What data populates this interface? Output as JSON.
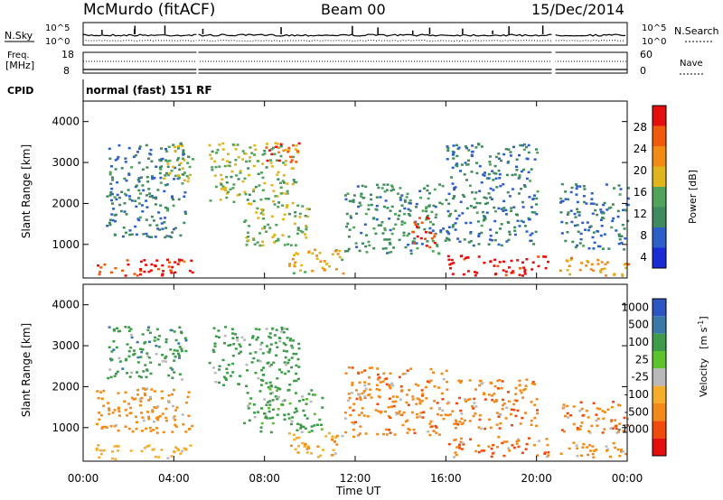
{
  "header": {
    "title": "McMurdo (fitACF)",
    "beam": "Beam 00",
    "date": "15/Dec/2014"
  },
  "status_panels": {
    "nsky_label": "N.Sky",
    "nsearch_label": "N.Search",
    "noise_ticks": [
      "10^5",
      "10^0"
    ],
    "freq_label_1": "Freq.",
    "freq_label_2": "[MHz]",
    "freq_ticks": [
      "18",
      "8"
    ],
    "nave_label": "Nave",
    "nave_ticks": [
      "60",
      "0"
    ],
    "cpid_label": "CPID",
    "cpid_value": "normal (fast) 151 RF"
  },
  "colors": {
    "power_scale": [
      "#1a2bd6",
      "#2e5fc9",
      "#3f8a5e",
      "#4fa35a",
      "#e0b41c",
      "#f28a14",
      "#ef5a0c",
      "#e60d0d"
    ],
    "velocity_scale": [
      "#e60d0d",
      "#f04a0c",
      "#f28a1a",
      "#f6ad2a",
      "#b9b9b9",
      "#5cc32d",
      "#3d9b4a",
      "#3a78a8",
      "#2d55c2"
    ],
    "ground_scatter": "#b9b9b9"
  },
  "chart_data": [
    {
      "type": "heatmap",
      "name": "power",
      "ylabel": "Slant Range [km]",
      "yticks": [
        "1000",
        "2000",
        "3000",
        "4000"
      ],
      "ylim": [
        180,
        4500
      ],
      "xlim": [
        "00:00",
        "00:00"
      ],
      "colorbar_label": "Power [dB]",
      "colorbar_ticks": [
        "28",
        "24",
        "20",
        "16",
        "12",
        "8",
        "4"
      ],
      "colorbar_range": [
        0,
        30
      ],
      "data_gaps_ut": [
        [
          "05:00",
          "05:05"
        ],
        [
          "20:40",
          "20:50"
        ]
      ],
      "scatter_patches": [
        {
          "t0": 0.5,
          "t1": 4.8,
          "r0": 250,
          "r1": 700,
          "level": 26
        },
        {
          "t0": 1.0,
          "t1": 4.5,
          "r0": 1200,
          "r1": 3500,
          "level": 8
        },
        {
          "t0": 3.5,
          "t1": 4.8,
          "r0": 2500,
          "r1": 3500,
          "level": 14
        },
        {
          "t0": 5.5,
          "t1": 9.5,
          "r0": 2000,
          "r1": 3500,
          "level": 14
        },
        {
          "t0": 8.0,
          "t1": 9.5,
          "r0": 3000,
          "r1": 3500,
          "level": 24
        },
        {
          "t0": 7.0,
          "t1": 10.0,
          "r0": 1000,
          "r1": 2000,
          "level": 14
        },
        {
          "t0": 9.0,
          "t1": 11.5,
          "r0": 300,
          "r1": 900,
          "level": 18
        },
        {
          "t0": 11.5,
          "t1": 16.0,
          "r0": 800,
          "r1": 2500,
          "level": 10
        },
        {
          "t0": 14.5,
          "t1": 15.5,
          "r0": 900,
          "r1": 1700,
          "level": 26
        },
        {
          "t0": 16.0,
          "t1": 20.5,
          "r0": 250,
          "r1": 750,
          "level": 29
        },
        {
          "t0": 16.0,
          "t1": 20.0,
          "r0": 1000,
          "r1": 3500,
          "level": 8
        },
        {
          "t0": 21.0,
          "t1": 24.0,
          "r0": 250,
          "r1": 700,
          "level": 20
        },
        {
          "t0": 21.0,
          "t1": 24.0,
          "r0": 900,
          "r1": 2500,
          "level": 8
        }
      ]
    },
    {
      "type": "heatmap",
      "name": "velocity",
      "ylabel": "Slant Range [km]",
      "yticks": [
        "1000",
        "2000",
        "3000",
        "4000"
      ],
      "ylim": [
        180,
        4500
      ],
      "xlabel": "Time UT",
      "xticks": [
        "00:00",
        "04:00",
        "08:00",
        "12:00",
        "16:00",
        "20:00",
        "00:00"
      ],
      "colorbar_label_main": "Velocity",
      "colorbar_label_unit": "[m s",
      "colorbar_label_sup": "-1",
      "colorbar_label_end": "]",
      "colorbar_ticks": [
        "1000",
        "500",
        "100",
        "25",
        "-25",
        "-100",
        "-500",
        "-1000"
      ],
      "scatter_patches": [
        {
          "t0": 0.5,
          "t1": 4.8,
          "r0": 250,
          "r1": 600,
          "v": -50
        },
        {
          "t0": 0.5,
          "t1": 4.8,
          "r0": 900,
          "r1": 2000,
          "v": -300
        },
        {
          "t0": 1.0,
          "t1": 4.5,
          "r0": 2200,
          "r1": 3500,
          "v": 400
        },
        {
          "t0": 5.5,
          "t1": 9.5,
          "r0": 2000,
          "r1": 3500,
          "v": 300
        },
        {
          "t0": 7.0,
          "t1": 10.5,
          "r0": 900,
          "r1": 2000,
          "v": 150
        },
        {
          "t0": 9.0,
          "t1": 11.5,
          "r0": 300,
          "r1": 900,
          "v": -100
        },
        {
          "t0": 11.5,
          "t1": 16.0,
          "r0": 800,
          "r1": 2500,
          "v": -400
        },
        {
          "t0": 16.0,
          "t1": 20.5,
          "r0": 300,
          "r1": 800,
          "v": -500
        },
        {
          "t0": 16.0,
          "t1": 20.0,
          "r0": 1000,
          "r1": 2200,
          "v": -400
        },
        {
          "t0": 21.0,
          "t1": 24.0,
          "r0": 300,
          "r1": 700,
          "v": -300
        },
        {
          "t0": 21.0,
          "t1": 24.0,
          "r0": 900,
          "r1": 1700,
          "v": -500
        }
      ]
    }
  ]
}
